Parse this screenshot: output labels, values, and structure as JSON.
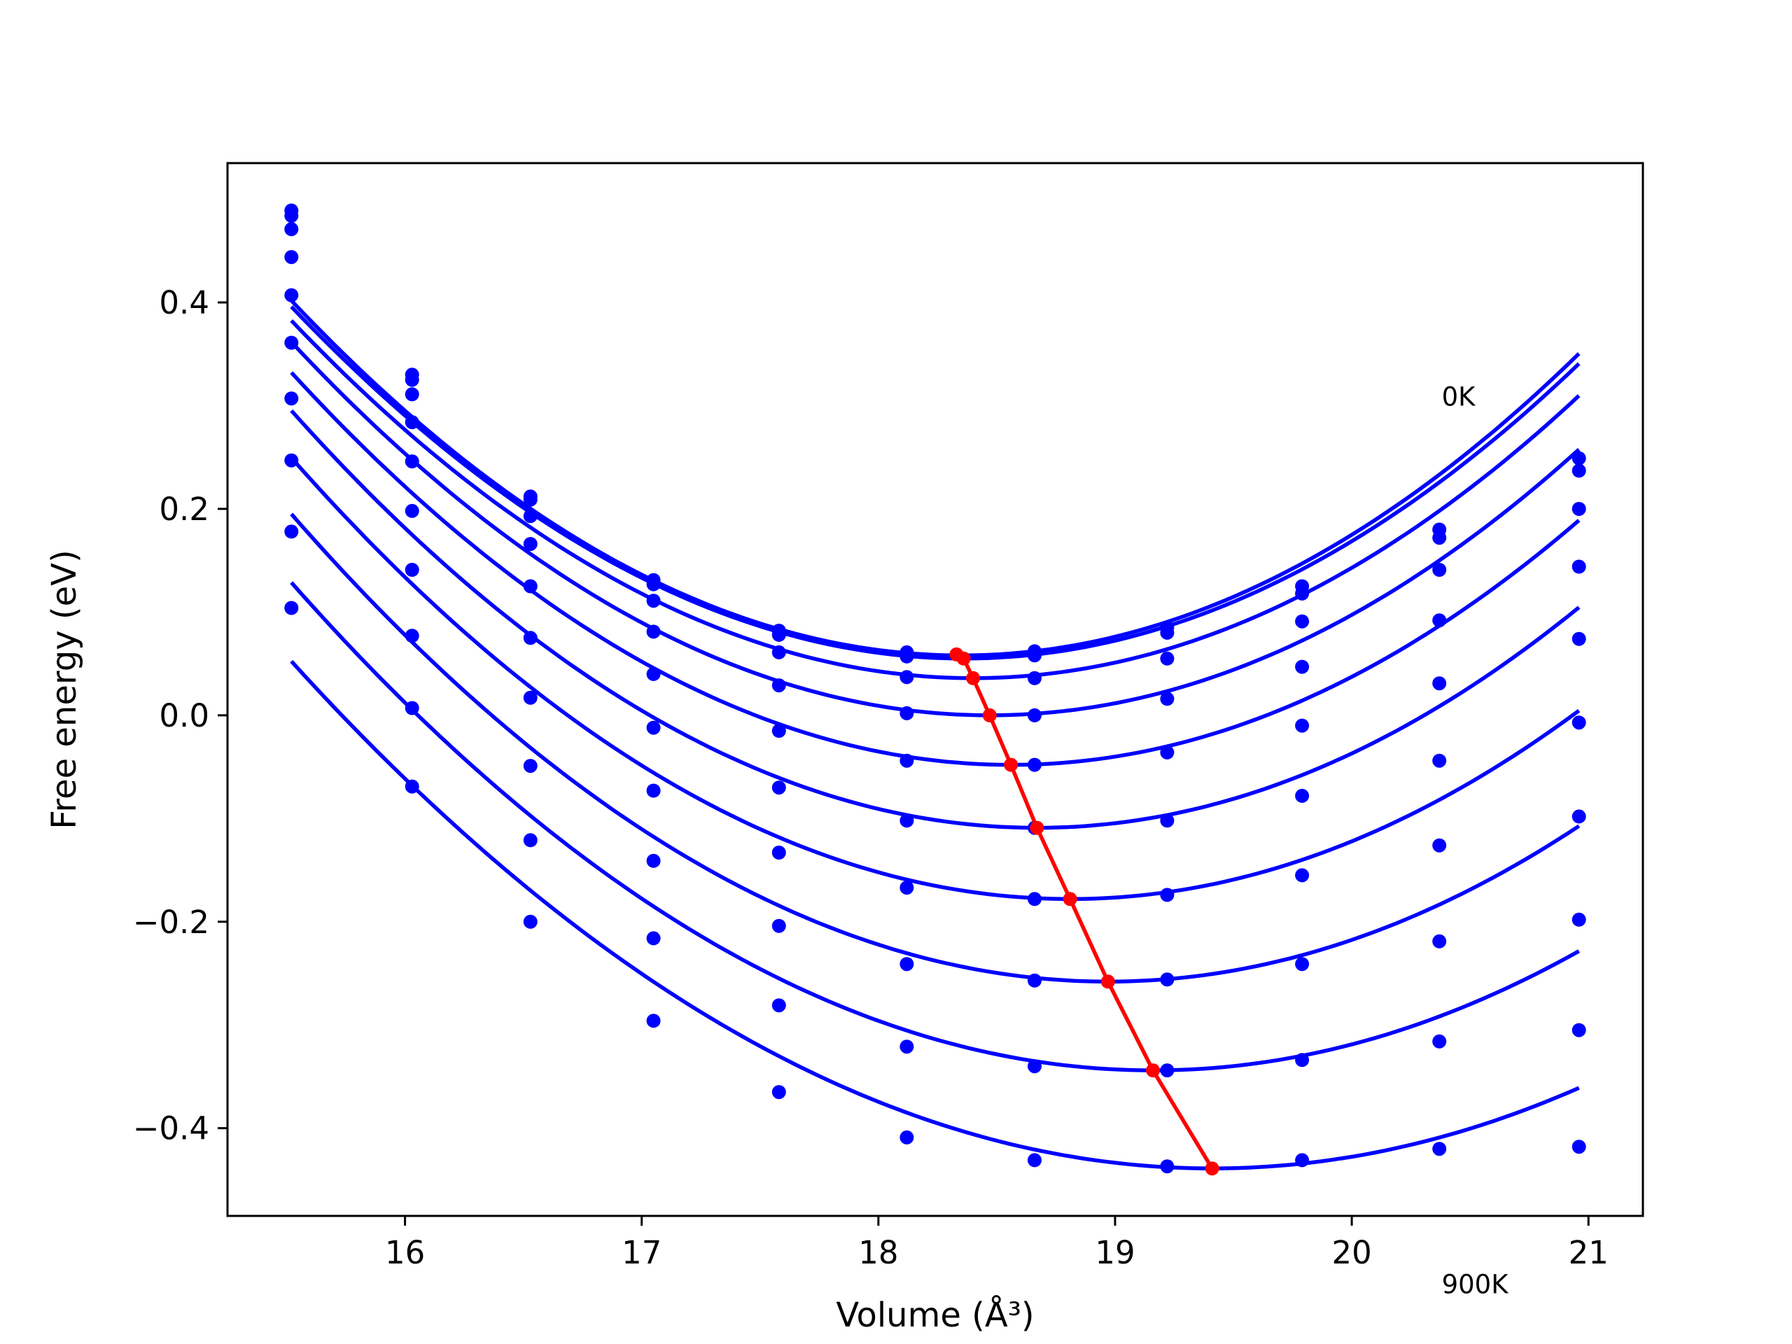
{
  "chart_data": {
    "type": "line",
    "title": "",
    "xlabel": "Volume (Å³)",
    "ylabel": "Free energy (eV)",
    "xlim": [
      15.25,
      21.23
    ],
    "ylim": [
      -0.485,
      0.535
    ],
    "xticks": [
      16,
      17,
      18,
      19,
      20,
      21
    ],
    "yticks": [
      -0.4,
      -0.2,
      0.0,
      0.2,
      0.4
    ],
    "xtick_labels": [
      "16",
      "17",
      "18",
      "19",
      "20",
      "21"
    ],
    "ytick_labels": [
      "−0.4",
      "−0.2",
      "0.0",
      "0.2",
      "0.4"
    ],
    "grid": false,
    "legend": "none",
    "annotations": [
      {
        "text": "0K",
        "x": 20.38,
        "y": 0.3
      },
      {
        "text": "900K",
        "x": 20.38,
        "y": -0.56
      }
    ],
    "x_points": [
      15.52,
      16.03,
      16.53,
      17.05,
      17.58,
      18.12,
      18.66,
      19.22,
      19.79,
      20.37,
      20.96
    ],
    "series": [
      {
        "color": "#0000ff",
        "min_x": 18.35,
        "min_y": 0.058,
        "y": [
          0.489,
          0.33,
          0.212,
          0.131,
          0.082,
          0.061,
          0.062,
          0.085,
          0.125,
          0.18,
          0.249
        ]
      },
      {
        "color": "#0000ff",
        "min_x": 18.36,
        "min_y": 0.055,
        "y": [
          0.484,
          0.325,
          0.209,
          0.127,
          0.078,
          0.057,
          0.058,
          0.08,
          0.118,
          0.172,
          0.237
        ]
      },
      {
        "color": "#0000ff",
        "min_x": 18.4,
        "min_y": 0.036,
        "y": [
          0.471,
          0.311,
          0.193,
          0.111,
          0.061,
          0.037,
          0.036,
          0.055,
          0.091,
          0.141,
          0.2
        ]
      },
      {
        "color": "#0000ff",
        "min_x": 18.47,
        "min_y": 0.0,
        "y": [
          0.444,
          0.284,
          0.166,
          0.081,
          0.029,
          0.002,
          0.0,
          0.016,
          0.047,
          0.092,
          0.144
        ]
      },
      {
        "color": "#0000ff",
        "min_x": 18.56,
        "min_y": -0.048,
        "y": [
          0.407,
          0.246,
          0.125,
          0.04,
          -0.015,
          -0.044,
          -0.048,
          -0.036,
          -0.01,
          0.031,
          0.074
        ]
      },
      {
        "color": "#0000ff",
        "min_x": 18.67,
        "min_y": -0.109,
        "y": [
          0.361,
          0.198,
          0.075,
          -0.012,
          -0.07,
          -0.102,
          -0.109,
          -0.102,
          -0.078,
          -0.044,
          -0.007
        ]
      },
      {
        "color": "#0000ff",
        "min_x": 18.81,
        "min_y": -0.178,
        "y": [
          0.307,
          0.141,
          0.017,
          -0.073,
          -0.133,
          -0.167,
          -0.178,
          -0.174,
          -0.155,
          -0.126,
          -0.098
        ]
      },
      {
        "color": "#0000ff",
        "min_x": 18.97,
        "min_y": -0.258,
        "y": [
          0.247,
          0.077,
          -0.049,
          -0.141,
          -0.204,
          -0.241,
          -0.257,
          -0.256,
          -0.241,
          -0.219,
          -0.198
        ]
      },
      {
        "color": "#0000ff",
        "min_x": 19.16,
        "min_y": -0.344,
        "y": [
          0.178,
          0.007,
          -0.121,
          -0.216,
          -0.281,
          -0.321,
          -0.34,
          -0.344,
          -0.334,
          -0.316,
          -0.305
        ]
      },
      {
        "color": "#0000ff",
        "min_x": 19.41,
        "min_y": -0.439,
        "y": [
          0.104,
          -0.069,
          -0.2,
          -0.296,
          -0.365,
          -0.409,
          -0.431,
          -0.437,
          -0.431,
          -0.42,
          -0.418
        ]
      }
    ],
    "minima_series": {
      "color": "#ff0000",
      "x": [
        18.33,
        18.36,
        18.4,
        18.47,
        18.56,
        18.67,
        18.81,
        18.97,
        19.16,
        19.41
      ],
      "y": [
        0.059,
        0.055,
        0.036,
        0.0,
        -0.048,
        -0.109,
        -0.178,
        -0.258,
        -0.344,
        -0.439
      ]
    }
  }
}
